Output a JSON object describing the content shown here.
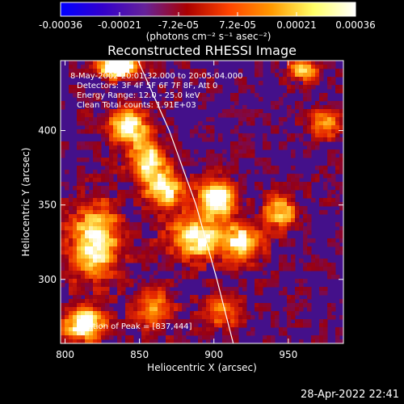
{
  "chart_data": {
    "type": "heatmap",
    "title": "Reconstructed RHESSI Image",
    "colorbar": {
      "ticks": [
        "-0.00036",
        "-0.00021",
        "-7.2e-05",
        "7.2e-05",
        "0.00021",
        "0.00036"
      ],
      "range": [
        -0.00036,
        0.00036
      ],
      "unit_label": "(photons cm⁻² s⁻¹ asec⁻²)",
      "colors": [
        "#0000ff",
        "#3300cc",
        "#662299",
        "#aa0000",
        "#ff4400",
        "#ff9900",
        "#ffff66",
        "#ffffff"
      ]
    },
    "xlabel": "Heliocentric X (arcsec)",
    "ylabel": "Heliocentric Y (arcsec)",
    "xlim": [
      797,
      987
    ],
    "ylim": [
      257,
      447
    ],
    "xticks": [
      800,
      850,
      900,
      950
    ],
    "yticks": [
      300,
      350,
      400
    ],
    "annotations": {
      "line1": "8-May-2002 20:01:32.000 to 20:05:04.000",
      "line2": "Detectors: 3F 4F 5F 6F 7F 8F, Att 0",
      "line3": "Energy Range: 12.0 - 25.0 keV",
      "line4": "Clean    Total counts: 1.91E+03",
      "peak": "Position of Peak = [837,444]"
    },
    "peak": {
      "x": 837,
      "y": 444
    },
    "limb": [
      [
        849,
        447
      ],
      [
        870,
        400
      ],
      [
        888,
        350
      ],
      [
        902,
        300
      ],
      [
        913,
        257
      ]
    ],
    "bright_regions": [
      {
        "x": 836,
        "y": 443,
        "sx": 9,
        "sy": 5,
        "amp": 1.2
      },
      {
        "x": 842,
        "y": 403,
        "sx": 9,
        "sy": 8,
        "amp": 0.8
      },
      {
        "x": 855,
        "y": 380,
        "sx": 9,
        "sy": 10,
        "amp": 0.7
      },
      {
        "x": 868,
        "y": 360,
        "sx": 9,
        "sy": 9,
        "amp": 0.7
      },
      {
        "x": 902,
        "y": 355,
        "sx": 8,
        "sy": 8,
        "amp": 0.95
      },
      {
        "x": 890,
        "y": 328,
        "sx": 14,
        "sy": 10,
        "amp": 0.75
      },
      {
        "x": 920,
        "y": 325,
        "sx": 9,
        "sy": 9,
        "amp": 0.65
      },
      {
        "x": 945,
        "y": 345,
        "sx": 8,
        "sy": 8,
        "amp": 0.6
      },
      {
        "x": 820,
        "y": 325,
        "sx": 12,
        "sy": 18,
        "amp": 0.75
      },
      {
        "x": 813,
        "y": 270,
        "sx": 10,
        "sy": 8,
        "amp": 0.85
      },
      {
        "x": 860,
        "y": 280,
        "sx": 9,
        "sy": 9,
        "amp": 0.5
      },
      {
        "x": 905,
        "y": 278,
        "sx": 9,
        "sy": 7,
        "amp": 0.45
      },
      {
        "x": 975,
        "y": 405,
        "sx": 7,
        "sy": 7,
        "amp": 0.55
      },
      {
        "x": 960,
        "y": 440,
        "sx": 8,
        "sy": 5,
        "amp": 0.55
      }
    ]
  },
  "footer": {
    "timestamp": "28-Apr-2022 22:41"
  }
}
